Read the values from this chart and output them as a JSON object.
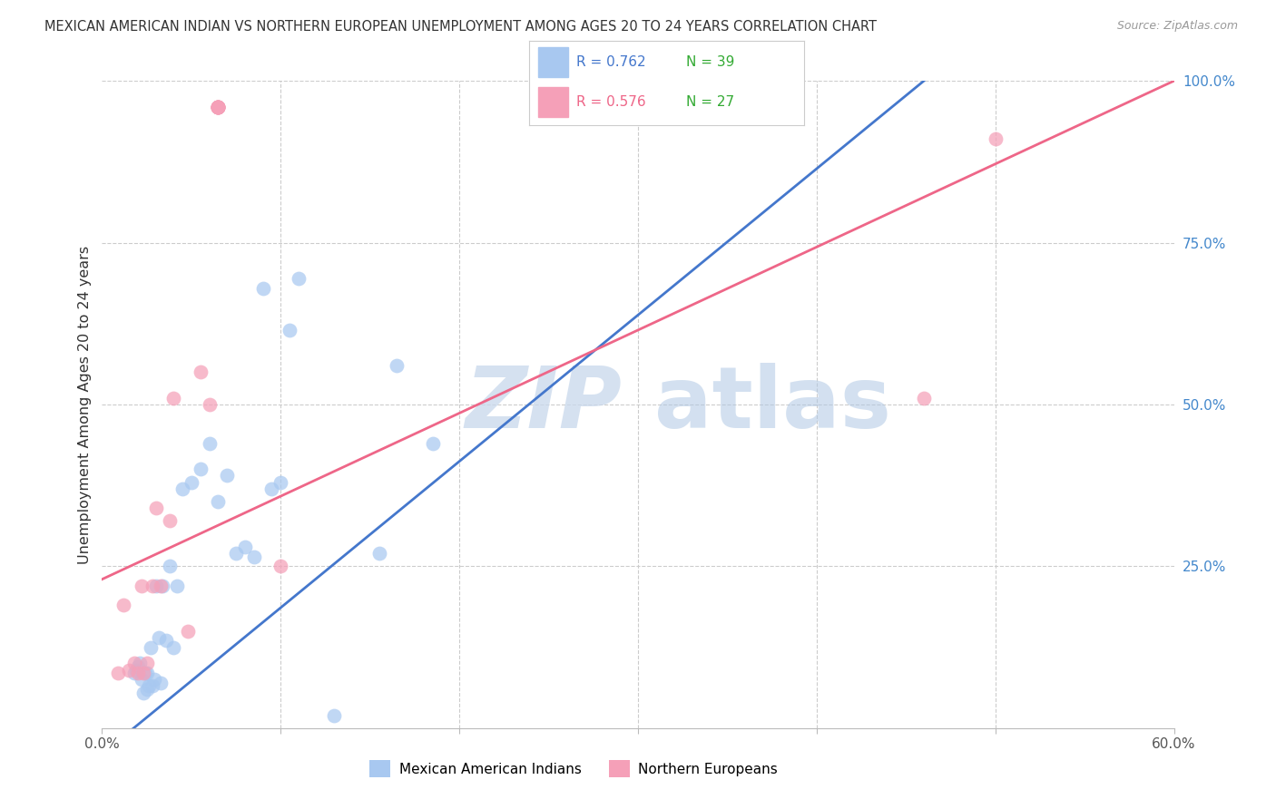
{
  "title": "MEXICAN AMERICAN INDIAN VS NORTHERN EUROPEAN UNEMPLOYMENT AMONG AGES 20 TO 24 YEARS CORRELATION CHART",
  "source": "Source: ZipAtlas.com",
  "ylabel": "Unemployment Among Ages 20 to 24 years",
  "xlim": [
    0.0,
    0.6
  ],
  "ylim": [
    0.0,
    1.0
  ],
  "blue_R": 0.762,
  "blue_N": 39,
  "pink_R": 0.576,
  "pink_N": 27,
  "blue_label": "Mexican American Indians",
  "pink_label": "Northern Europeans",
  "blue_color": "#a8c8f0",
  "pink_color": "#f5a0b8",
  "blue_line_color": "#4477cc",
  "pink_line_color": "#ee6688",
  "background_color": "#ffffff",
  "grid_color": "#cccccc",
  "title_color": "#333333",
  "right_tick_color": "#4488cc",
  "blue_line_x": [
    0.0,
    0.46
  ],
  "blue_line_y": [
    -0.04,
    1.0
  ],
  "pink_line_x": [
    0.0,
    0.6
  ],
  "pink_line_y": [
    0.23,
    1.0
  ],
  "blue_x": [
    0.018,
    0.019,
    0.02,
    0.021,
    0.022,
    0.023,
    0.024,
    0.025,
    0.025,
    0.026,
    0.027,
    0.028,
    0.029,
    0.03,
    0.032,
    0.033,
    0.034,
    0.036,
    0.038,
    0.04,
    0.042,
    0.045,
    0.05,
    0.055,
    0.06,
    0.065,
    0.07,
    0.075,
    0.08,
    0.085,
    0.09,
    0.095,
    0.1,
    0.105,
    0.11,
    0.13,
    0.155,
    0.165,
    0.185
  ],
  "blue_y": [
    0.085,
    0.09,
    0.095,
    0.1,
    0.075,
    0.055,
    0.085,
    0.06,
    0.085,
    0.065,
    0.125,
    0.065,
    0.075,
    0.22,
    0.14,
    0.07,
    0.22,
    0.135,
    0.25,
    0.125,
    0.22,
    0.37,
    0.38,
    0.4,
    0.44,
    0.35,
    0.39,
    0.27,
    0.28,
    0.265,
    0.68,
    0.37,
    0.38,
    0.615,
    0.695,
    0.02,
    0.27,
    0.56,
    0.44
  ],
  "pink_x": [
    0.009,
    0.012,
    0.015,
    0.018,
    0.02,
    0.022,
    0.023,
    0.025,
    0.028,
    0.03,
    0.033,
    0.038,
    0.04,
    0.048,
    0.055,
    0.06,
    0.065,
    0.065,
    0.065,
    0.065,
    0.065,
    0.065,
    0.065,
    0.065,
    0.1,
    0.46,
    0.5
  ],
  "pink_y": [
    0.085,
    0.19,
    0.09,
    0.1,
    0.085,
    0.22,
    0.085,
    0.1,
    0.22,
    0.34,
    0.22,
    0.32,
    0.51,
    0.15,
    0.55,
    0.5,
    0.96,
    0.96,
    0.96,
    0.96,
    0.96,
    0.96,
    0.96,
    0.96,
    0.25,
    0.51,
    0.91
  ]
}
